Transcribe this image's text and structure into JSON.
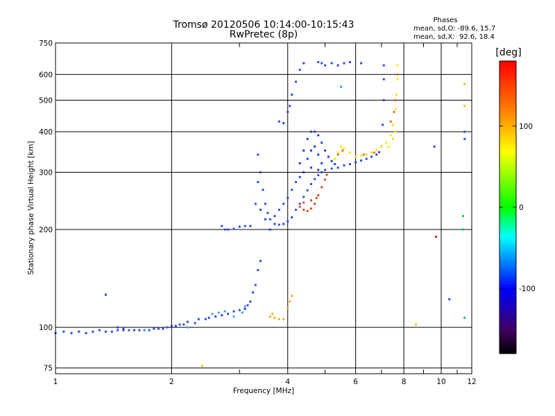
{
  "chart_data": {
    "type": "scatter",
    "title": "Tromsø 20120506 10:14:00-10:15:43",
    "subtitle": "RwPretec (8p)",
    "xlabel": "Frequency [MHz]",
    "ylabel": "Stationary phase Virtual Height [km]",
    "x_scale": "log",
    "y_scale": "log",
    "xlim": [
      1,
      12
    ],
    "ylim": [
      72,
      750
    ],
    "x_ticks": [
      1,
      2,
      4,
      6,
      8,
      10,
      12
    ],
    "y_ticks": [
      75,
      100,
      200,
      300,
      400,
      500,
      600,
      750
    ],
    "grid": true,
    "stats": {
      "heading": "Phases",
      "line_o": "mean, sd,O: -89.6, 15.7",
      "line_x": "mean, sd,X:  92.6, 18.4"
    },
    "colorbar": {
      "label": "[deg]",
      "range": [
        -180,
        180
      ],
      "ticks": [
        100,
        0,
        -100
      ],
      "colors": [
        "#ff0000",
        "#ff8000",
        "#ffff00",
        "#00ff00",
        "#00ffff",
        "#0000ff",
        "#000000"
      ]
    },
    "series": [
      {
        "color": "#2b4be0",
        "points": [
          [
            1.0,
            96
          ],
          [
            1.05,
            97
          ],
          [
            1.1,
            96
          ],
          [
            1.15,
            97
          ],
          [
            1.2,
            96
          ],
          [
            1.25,
            97
          ],
          [
            1.3,
            98
          ],
          [
            1.35,
            97
          ],
          [
            1.4,
            97
          ],
          [
            1.45,
            98
          ],
          [
            1.5,
            98
          ],
          [
            1.55,
            98
          ],
          [
            1.6,
            98
          ],
          [
            1.65,
            98
          ],
          [
            1.7,
            98
          ],
          [
            1.75,
            98
          ],
          [
            1.8,
            99
          ],
          [
            1.85,
            99
          ],
          [
            1.9,
            99
          ],
          [
            1.95,
            100
          ],
          [
            2.0,
            101
          ],
          [
            2.05,
            101
          ],
          [
            2.1,
            102
          ],
          [
            2.15,
            102
          ],
          [
            2.2,
            104
          ],
          [
            2.3,
            103
          ],
          [
            2.35,
            106
          ],
          [
            2.45,
            106
          ],
          [
            2.5,
            107
          ],
          [
            2.6,
            108
          ],
          [
            2.7,
            109
          ],
          [
            2.8,
            110
          ],
          [
            2.9,
            112
          ],
          [
            3.0,
            113
          ],
          [
            3.1,
            114
          ],
          [
            3.15,
            117
          ],
          [
            3.2,
            120
          ],
          [
            3.25,
            128
          ],
          [
            3.3,
            135
          ],
          [
            3.35,
            150
          ],
          [
            3.4,
            160
          ],
          [
            1.35,
            126
          ],
          [
            1.45,
            100
          ],
          [
            1.5,
            99
          ]
        ]
      },
      {
        "color": "#3fa6d8",
        "points": [
          [
            2.55,
            110
          ],
          [
            2.65,
            111
          ],
          [
            2.75,
            112
          ],
          [
            2.9,
            108
          ],
          [
            3.05,
            111
          ],
          [
            3.1,
            116
          ],
          [
            2.2,
            100
          ],
          [
            1.7,
            98
          ]
        ]
      },
      {
        "color": "#2b4be0",
        "points": [
          [
            2.7,
            205
          ],
          [
            2.75,
            200
          ],
          [
            2.8,
            200
          ],
          [
            2.9,
            201
          ],
          [
            3.0,
            204
          ],
          [
            3.1,
            205
          ],
          [
            3.2,
            205
          ],
          [
            3.3,
            240
          ],
          [
            3.35,
            280
          ],
          [
            3.35,
            340
          ],
          [
            3.4,
            300
          ],
          [
            3.45,
            265
          ],
          [
            3.5,
            240
          ],
          [
            3.55,
            225
          ],
          [
            3.6,
            215
          ],
          [
            3.7,
            208
          ],
          [
            3.8,
            207
          ],
          [
            3.9,
            208
          ],
          [
            4.0,
            212
          ],
          [
            4.1,
            218
          ],
          [
            4.2,
            230
          ],
          [
            4.3,
            240
          ],
          [
            4.4,
            252
          ],
          [
            4.5,
            264
          ],
          [
            4.6,
            276
          ],
          [
            4.7,
            286
          ],
          [
            4.8,
            294
          ],
          [
            4.9,
            300
          ],
          [
            5.0,
            305
          ],
          [
            5.2,
            308
          ],
          [
            5.4,
            310
          ],
          [
            5.6,
            315
          ],
          [
            5.8,
            318
          ],
          [
            6.0,
            322
          ],
          [
            6.2,
            326
          ],
          [
            6.4,
            330
          ],
          [
            6.6,
            335
          ],
          [
            6.8,
            340
          ],
          [
            6.9,
            346
          ],
          [
            7.0,
            360
          ],
          [
            7.05,
            420
          ],
          [
            7.1,
            500
          ],
          [
            7.1,
            580
          ],
          [
            7.1,
            640
          ],
          [
            3.4,
            230
          ],
          [
            3.5,
            215
          ],
          [
            3.6,
            200
          ],
          [
            3.7,
            220
          ],
          [
            3.8,
            230
          ],
          [
            3.9,
            240
          ],
          [
            4.0,
            250
          ],
          [
            4.1,
            265
          ],
          [
            4.2,
            280
          ],
          [
            4.3,
            290
          ]
        ]
      },
      {
        "color": "#1f3bd0",
        "points": [
          [
            4.3,
            320
          ],
          [
            4.4,
            350
          ],
          [
            4.5,
            380
          ],
          [
            4.6,
            400
          ],
          [
            4.7,
            400
          ],
          [
            4.8,
            390
          ],
          [
            4.9,
            370
          ],
          [
            5.0,
            350
          ],
          [
            5.1,
            335
          ],
          [
            5.2,
            325
          ],
          [
            5.3,
            318
          ],
          [
            4.5,
            330
          ],
          [
            4.6,
            350
          ],
          [
            4.7,
            360
          ],
          [
            4.8,
            340
          ],
          [
            4.9,
            320
          ],
          [
            4.4,
            300
          ],
          [
            4.6,
            310
          ],
          [
            4.8,
            305
          ]
        ]
      },
      {
        "color": "#2b4be0",
        "points": [
          [
            3.8,
            430
          ],
          [
            3.9,
            425
          ],
          [
            4.0,
            460
          ],
          [
            4.05,
            480
          ],
          [
            4.1,
            520
          ],
          [
            4.2,
            570
          ],
          [
            4.3,
            620
          ],
          [
            4.4,
            650
          ],
          [
            4.8,
            655
          ],
          [
            4.9,
            650
          ],
          [
            5.0,
            640
          ],
          [
            5.2,
            650
          ],
          [
            5.4,
            640
          ],
          [
            5.6,
            650
          ],
          [
            5.8,
            655
          ],
          [
            6.2,
            650
          ]
        ]
      },
      {
        "color": "#f0b020",
        "points": [
          [
            3.6,
            108
          ],
          [
            3.7,
            107
          ],
          [
            3.8,
            106
          ],
          [
            3.9,
            106
          ],
          [
            4.0,
            115
          ],
          [
            4.05,
            120
          ],
          [
            4.1,
            125
          ],
          [
            3.65,
            110
          ]
        ]
      },
      {
        "color": "#e04a20",
        "points": [
          [
            4.3,
            235
          ],
          [
            4.4,
            230
          ],
          [
            4.5,
            228
          ],
          [
            4.6,
            232
          ],
          [
            4.7,
            240
          ],
          [
            4.8,
            255
          ],
          [
            4.9,
            270
          ],
          [
            5.0,
            285
          ],
          [
            5.05,
            295
          ],
          [
            4.4,
            242
          ],
          [
            4.6,
            246
          ],
          [
            4.75,
            250
          ]
        ]
      },
      {
        "color": "#f2e800",
        "points": [
          [
            5.3,
            330
          ],
          [
            5.4,
            345
          ],
          [
            5.5,
            360
          ],
          [
            5.6,
            355
          ],
          [
            5.8,
            345
          ],
          [
            6.0,
            335
          ],
          [
            6.2,
            338
          ],
          [
            6.4,
            340
          ],
          [
            6.6,
            345
          ],
          [
            6.8,
            352
          ],
          [
            7.0,
            360
          ],
          [
            7.2,
            370
          ],
          [
            7.4,
            390
          ],
          [
            7.5,
            420
          ],
          [
            7.6,
            470
          ],
          [
            7.65,
            520
          ],
          [
            7.7,
            580
          ],
          [
            7.7,
            640
          ],
          [
            7.3,
            360
          ],
          [
            7.5,
            380
          ],
          [
            7.6,
            400
          ]
        ]
      },
      {
        "color": "#e07020",
        "points": [
          [
            5.4,
            340
          ],
          [
            5.55,
            350
          ],
          [
            7.4,
            430
          ],
          [
            7.55,
            460
          ],
          [
            7.6,
            500
          ],
          [
            7.7,
            600
          ],
          [
            6.3,
            340
          ],
          [
            6.7,
            345
          ]
        ]
      },
      {
        "color": "#2b4be0",
        "points": [
          [
            9.6,
            360
          ],
          [
            11.5,
            400
          ],
          [
            11.5,
            380
          ],
          [
            10.5,
            122
          ]
        ]
      },
      {
        "color": "#e8c800",
        "points": [
          [
            11.5,
            560
          ],
          [
            11.5,
            480
          ],
          [
            8.6,
            102
          ],
          [
            2.4,
            76
          ]
        ]
      },
      {
        "color": "#00d040",
        "points": [
          [
            11.4,
            220
          ],
          [
            11.4,
            200
          ]
        ]
      },
      {
        "color": "#d02020",
        "points": [
          [
            9.7,
            190
          ]
        ]
      },
      {
        "color": "#20a0e0",
        "points": [
          [
            11.5,
            107
          ],
          [
            5.5,
            550
          ]
        ]
      }
    ]
  }
}
